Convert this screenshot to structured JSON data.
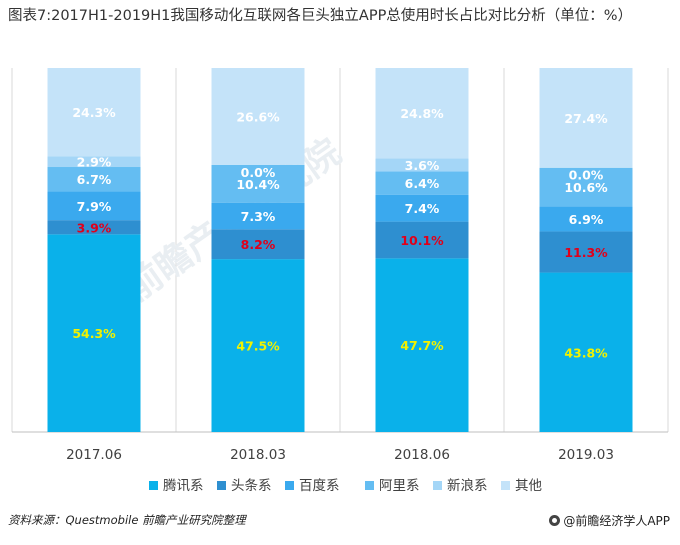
{
  "title": "图表7:2017H1-2019H1我国移动化互联网各巨头独立APP总使用时长占比对比分析（单位：%）",
  "chart_data": {
    "type": "bar",
    "stacked": true,
    "categories": [
      "2017.06",
      "2018.03",
      "2018.06",
      "2019.03"
    ],
    "ylim": [
      0,
      100
    ],
    "grid": false,
    "legend_position": "bottom",
    "series": [
      {
        "name": "腾讯系",
        "color": "#0ab1ea",
        "label_color": "#f2f200",
        "values": [
          54.3,
          47.5,
          47.7,
          43.8
        ],
        "labels": [
          "54.3%",
          "47.5%",
          "47.7%",
          "43.8%"
        ]
      },
      {
        "name": "头条系",
        "color": "#2e8fd0",
        "label_color": "#e0001b",
        "values": [
          3.9,
          8.2,
          10.1,
          11.3
        ],
        "labels": [
          "3.9%",
          "8.2%",
          "10.1%",
          "11.3%"
        ]
      },
      {
        "name": "百度系",
        "color": "#3aa9ee",
        "label_color": "#ffffff",
        "values": [
          7.9,
          7.3,
          7.4,
          6.9
        ],
        "labels": [
          "7.9%",
          "7.3%",
          "7.4%",
          "6.9%"
        ]
      },
      {
        "name": "阿里系",
        "color": "#64bdf2",
        "label_color": "#ffffff",
        "values": [
          6.7,
          10.4,
          6.4,
          10.6
        ],
        "labels": [
          "6.7%",
          "10.4%",
          "6.4%",
          "10.6%"
        ]
      },
      {
        "name": "新浪系",
        "color": "#a4d6f7",
        "label_color": "#ffffff",
        "values": [
          2.9,
          0.0,
          3.6,
          0.0
        ],
        "labels": [
          "2.9%",
          "0.0%",
          "3.6%",
          "0.0%"
        ]
      },
      {
        "name": "其他",
        "color": "#c4e3f9",
        "label_color": "#ffffff",
        "values": [
          24.3,
          26.6,
          24.8,
          27.4
        ],
        "labels": [
          "24.3%",
          "26.6%",
          "24.8%",
          "27.4%"
        ]
      }
    ]
  },
  "watermark": "前瞻产业研究院",
  "footer": {
    "source": "资料来源：Questmobile 前瞻产业研究院整理",
    "brand": "@前瞻经济学人APP"
  }
}
